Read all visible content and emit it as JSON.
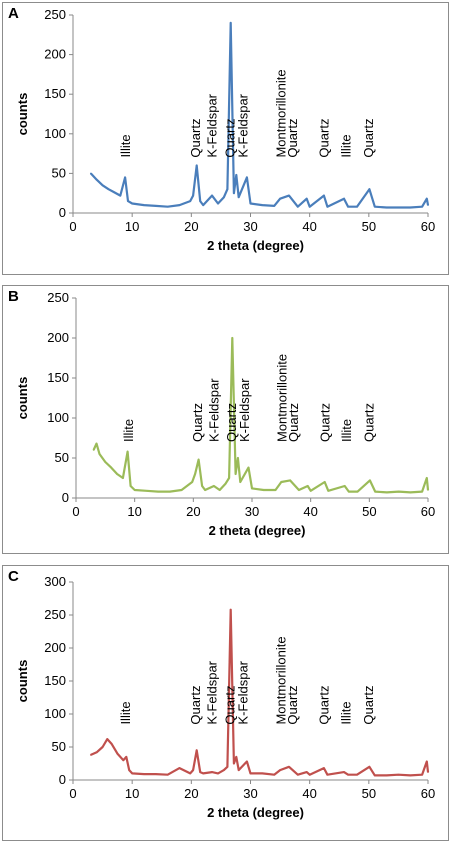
{
  "chart_data": [
    {
      "type": "line",
      "panel_label": "A",
      "color": "#4a7ebb",
      "xlabel": "2 theta (degree)",
      "ylabel": "counts",
      "xlim": [
        0,
        60
      ],
      "ylim": [
        0,
        250
      ],
      "xticks": [
        0,
        10,
        20,
        30,
        40,
        50,
        60
      ],
      "yticks": [
        0,
        50,
        100,
        150,
        200,
        250
      ],
      "grid": false,
      "x": [
        3,
        4,
        5,
        6,
        7,
        8,
        8.8,
        9.3,
        10,
        12,
        14,
        16,
        18,
        19.8,
        20.3,
        20.9,
        21.5,
        22,
        23.5,
        24.5,
        25.5,
        26.1,
        26.65,
        27.2,
        27.6,
        28,
        29.4,
        30,
        32,
        34,
        35,
        36.5,
        38,
        39.5,
        40,
        42.4,
        43,
        45.8,
        46.5,
        48,
        50.1,
        51,
        53,
        55,
        57,
        59,
        59.8,
        60
      ],
      "y": [
        50,
        42,
        35,
        30,
        26,
        22,
        45,
        15,
        12,
        10,
        9,
        8,
        10,
        15,
        22,
        60,
        15,
        10,
        22,
        12,
        20,
        30,
        240,
        25,
        48,
        20,
        45,
        12,
        10,
        9,
        18,
        22,
        8,
        18,
        8,
        22,
        8,
        18,
        8,
        8,
        30,
        8,
        7,
        7,
        7,
        8,
        18,
        10
      ],
      "annotations": [
        {
          "text": "Illite",
          "x": 9
        },
        {
          "text": "Quartz",
          "x": 20.8
        },
        {
          "text": "K-Feldspar",
          "x": 23.6
        },
        {
          "text": "Quartz",
          "x": 26.6
        },
        {
          "text": "K-Feldspar",
          "x": 28.8
        },
        {
          "text": "Montmorillonite",
          "x": 35.2
        },
        {
          "text": "Quartz",
          "x": 37.2
        },
        {
          "text": "Quartz",
          "x": 42.5
        },
        {
          "text": "Illite",
          "x": 46.2
        },
        {
          "text": "Quartz",
          "x": 50
        }
      ]
    },
    {
      "type": "line",
      "panel_label": "B",
      "color": "#9bbb59",
      "xlabel": "2 theta (degree)",
      "ylabel": "counts",
      "xlim": [
        0,
        60
      ],
      "ylim": [
        0,
        250
      ],
      "xticks": [
        0,
        10,
        20,
        30,
        40,
        50,
        60
      ],
      "yticks": [
        0,
        50,
        100,
        150,
        200,
        250
      ],
      "grid": false,
      "x": [
        3,
        3.5,
        4,
        5,
        6,
        7,
        8,
        8.8,
        9.3,
        10,
        12,
        14,
        16,
        18,
        19.8,
        20.3,
        20.9,
        21.5,
        22,
        23.5,
        24.5,
        25.5,
        26.1,
        26.65,
        27.2,
        27.6,
        28,
        29.4,
        30,
        32,
        34,
        35,
        36.5,
        38,
        39.5,
        40,
        42.4,
        43,
        45.8,
        46.5,
        48,
        50.1,
        51,
        53,
        55,
        57,
        59,
        59.8,
        60
      ],
      "y": [
        60,
        68,
        55,
        45,
        38,
        30,
        25,
        58,
        15,
        10,
        9,
        8,
        8,
        10,
        20,
        30,
        48,
        15,
        10,
        15,
        10,
        18,
        25,
        200,
        30,
        50,
        20,
        38,
        12,
        10,
        10,
        20,
        22,
        10,
        15,
        9,
        20,
        9,
        15,
        8,
        8,
        22,
        8,
        7,
        8,
        7,
        8,
        25,
        10
      ],
      "annotations": [
        {
          "text": "Illite",
          "x": 9
        },
        {
          "text": "Quartz",
          "x": 20.8
        },
        {
          "text": "K-Feldspar",
          "x": 23.6
        },
        {
          "text": "Quartz",
          "x": 26.6
        },
        {
          "text": "K-Feldspar",
          "x": 28.8
        },
        {
          "text": "Montmorillonite",
          "x": 35.2
        },
        {
          "text": "Quartz",
          "x": 37.2
        },
        {
          "text": "Quartz",
          "x": 42.5
        },
        {
          "text": "Illite",
          "x": 46.2
        },
        {
          "text": "Quartz",
          "x": 50
        }
      ]
    },
    {
      "type": "line",
      "panel_label": "C",
      "color": "#c0504d",
      "xlabel": "2 theta (degree)",
      "ylabel": "counts",
      "xlim": [
        0,
        60
      ],
      "ylim": [
        0,
        300
      ],
      "xticks": [
        0,
        10,
        20,
        30,
        40,
        50,
        60
      ],
      "yticks": [
        0,
        50,
        100,
        150,
        200,
        250,
        300
      ],
      "grid": false,
      "x": [
        3,
        4,
        5,
        5.8,
        6.5,
        7.5,
        8.5,
        9,
        9.5,
        10,
        12,
        14,
        16,
        18,
        19.8,
        20.3,
        20.9,
        21.5,
        22,
        23.5,
        24.5,
        25.5,
        26.1,
        26.65,
        27.2,
        27.6,
        28,
        29.4,
        30,
        32,
        34,
        35,
        36.5,
        38,
        39.5,
        40,
        42.4,
        43,
        45.8,
        46.5,
        48,
        50.1,
        51,
        53,
        55,
        57,
        59,
        59.8,
        60
      ],
      "y": [
        38,
        42,
        50,
        62,
        55,
        40,
        30,
        35,
        15,
        10,
        9,
        9,
        8,
        18,
        10,
        15,
        45,
        12,
        10,
        12,
        10,
        15,
        20,
        258,
        25,
        35,
        15,
        28,
        10,
        10,
        8,
        15,
        20,
        8,
        12,
        8,
        18,
        8,
        12,
        8,
        8,
        20,
        7,
        7,
        8,
        7,
        8,
        28,
        12
      ],
      "annotations": [
        {
          "text": "Illite",
          "x": 9
        },
        {
          "text": "Quartz",
          "x": 20.8
        },
        {
          "text": "K-Feldspar",
          "x": 23.6
        },
        {
          "text": "Quartz",
          "x": 26.6
        },
        {
          "text": "K-Feldspar",
          "x": 28.8
        },
        {
          "text": "Montmorillonite",
          "x": 35.2
        },
        {
          "text": "Quartz",
          "x": 37.2
        },
        {
          "text": "Quartz",
          "x": 42.5
        },
        {
          "text": "Illite",
          "x": 46.2
        },
        {
          "text": "Quartz",
          "x": 50
        }
      ]
    }
  ]
}
